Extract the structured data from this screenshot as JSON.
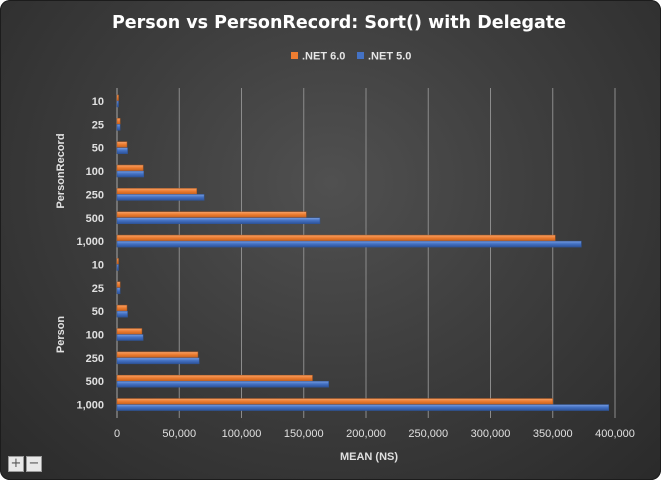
{
  "colors": {
    "net6": "#ed7d31",
    "net5": "#4472c4",
    "gridline": "#8c8c8c",
    "text": "#e0e0e0"
  },
  "zoom": {
    "in_label": "+",
    "out_label": "−"
  },
  "chart_data": {
    "type": "bar",
    "orientation": "horizontal",
    "title": "Person vs PersonRecord: Sort() with Delegate",
    "xlabel": "MEAN (NS)",
    "ylabel": "",
    "xlim": [
      0,
      400000
    ],
    "xticks": [
      0,
      50000,
      100000,
      150000,
      200000,
      250000,
      300000,
      350000,
      400000
    ],
    "xtick_labels": [
      "0",
      "50,000",
      "100,000",
      "150,000",
      "200,000",
      "250,000",
      "300,000",
      "350,000",
      "400,000"
    ],
    "grid": "vertical",
    "legend_position": "top",
    "groups": [
      {
        "name": "PersonRecord",
        "categories": [
          "10",
          "25",
          "50",
          "100",
          "250",
          "500",
          "1,000"
        ],
        "series": [
          {
            "name": ".NET 6.0",
            "values": [
              1000,
              2500,
              8000,
              21000,
              64000,
              152000,
              352000
            ]
          },
          {
            "name": ".NET 5.0",
            "values": [
              1000,
              2500,
              8500,
              21500,
              70000,
              163000,
              373000
            ]
          }
        ]
      },
      {
        "name": "Person",
        "categories": [
          "10",
          "25",
          "50",
          "100",
          "250",
          "500",
          "1,000"
        ],
        "series": [
          {
            "name": ".NET 6.0",
            "values": [
              1000,
              2500,
              8000,
              20000,
              65000,
              157000,
              350000
            ]
          },
          {
            "name": ".NET 5.0",
            "values": [
              1000,
              2500,
              8500,
              21000,
              66000,
              170000,
              395000
            ]
          }
        ]
      }
    ]
  }
}
